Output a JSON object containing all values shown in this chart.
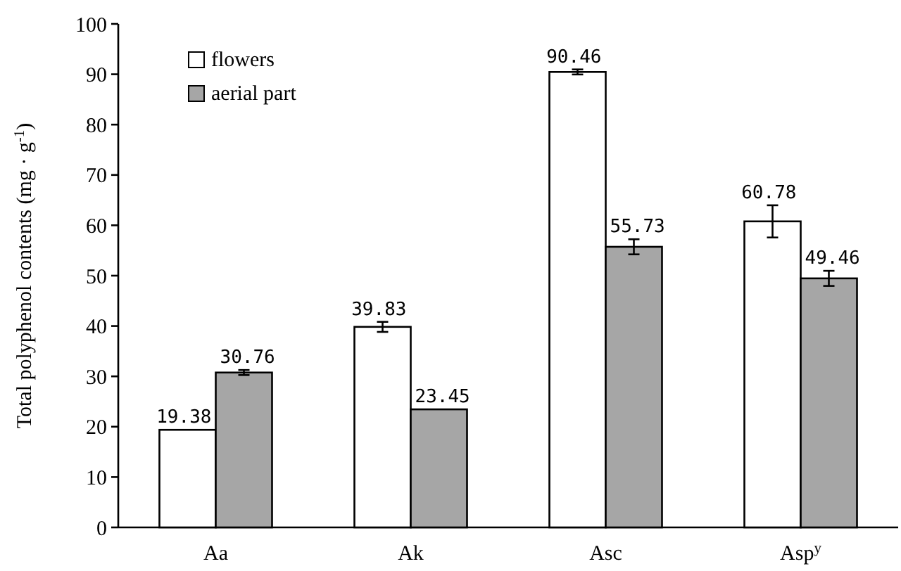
{
  "chart_data": {
    "type": "bar",
    "categories": [
      "Aa",
      "Ak",
      "Asc",
      "Asp$^{y}$"
    ],
    "ylabel": "Total polyphenol contents (mg · g$^{-1}$)",
    "series": [
      {
        "name": "flowers",
        "color": "#ffffff",
        "values": [
          19.38,
          39.83,
          90.46,
          60.78
        ],
        "errors": [
          null,
          1,
          0.5,
          3.2
        ]
      },
      {
        "name": "aerial part",
        "color": "#a6a6a6",
        "values": [
          30.76,
          23.45,
          55.73,
          49.46
        ],
        "errors": [
          0.5,
          null,
          1.5,
          1.5
        ]
      }
    ],
    "ylim": [
      0,
      100
    ],
    "yticks": [
      0,
      10,
      20,
      30,
      40,
      50,
      60,
      70,
      80,
      90,
      100
    ],
    "data_labels": true,
    "legend": "top left"
  }
}
